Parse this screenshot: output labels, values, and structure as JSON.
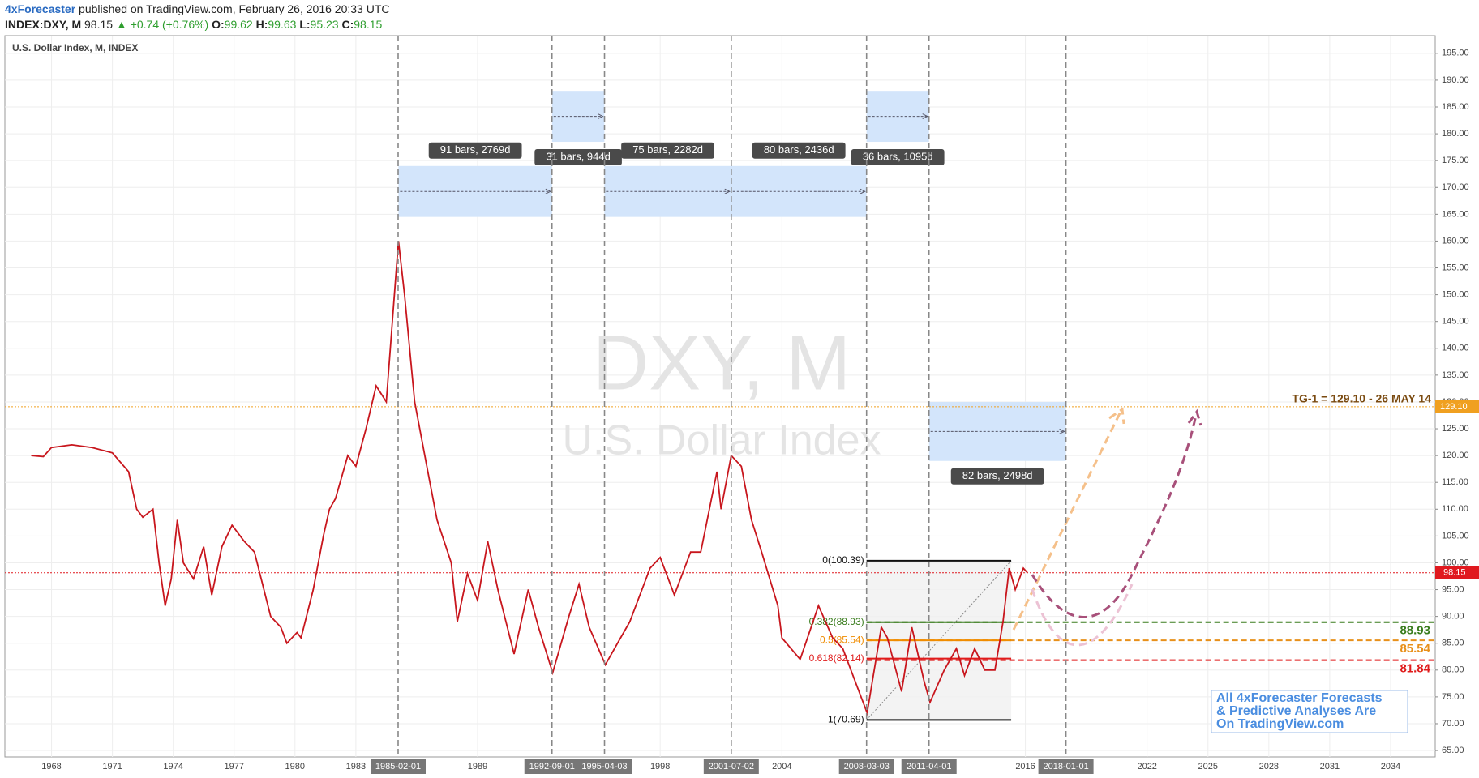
{
  "header": {
    "author": "4xForecaster",
    "published": " published on TradingView.com, February 26, 2016 20:33 UTC",
    "symbol": "INDEX:DXY, M",
    "last": "98.15",
    "change": "▲ +0.74 (+0.76%)",
    "open_label": "O:",
    "open": "99.62",
    "high_label": "H:",
    "high": "99.63",
    "low_label": "L:",
    "low": "95.23",
    "close_label": "C:",
    "close": "98.15"
  },
  "chart_data": {
    "type": "line",
    "title": "U.S. Dollar Index, M, INDEX",
    "watermark": "DXY, M",
    "watermark_subtitle": "U.S. Dollar Index",
    "x": [
      1967.0,
      1967.6,
      1968.0,
      1969.0,
      1970.0,
      1971.0,
      1971.8,
      1972.2,
      1972.5,
      1973.0,
      1973.3,
      1973.6,
      1973.9,
      1974.2,
      1974.5,
      1975.0,
      1975.5,
      1975.9,
      1976.4,
      1976.9,
      1977.5,
      1978.0,
      1978.4,
      1978.8,
      1979.3,
      1979.6,
      1980.1,
      1980.3,
      1980.9,
      1981.4,
      1981.7,
      1982.0,
      1982.6,
      1983.0,
      1983.5,
      1984.0,
      1984.5,
      1985.1,
      1985.4,
      1985.9,
      1986.5,
      1987.0,
      1987.7,
      1988.0,
      1988.5,
      1989.0,
      1989.5,
      1990.0,
      1990.8,
      1991.5,
      1992.0,
      1992.7,
      1993.5,
      1994.0,
      1994.5,
      1995.3,
      1995.9,
      1996.5,
      1997.5,
      1998.0,
      1998.7,
      1999.5,
      2000.0,
      2000.8,
      2001.0,
      2001.5,
      2002.0,
      2002.5,
      2003.0,
      2003.8,
      2004.0,
      2004.9,
      2005.8,
      2006.5,
      2007.0,
      2007.8,
      2008.2,
      2008.9,
      2009.2,
      2009.9,
      2010.4,
      2011.0,
      2011.3,
      2012.0,
      2012.6,
      2013.0,
      2013.5,
      2014.0,
      2014.5,
      2014.9,
      2015.2,
      2015.5,
      2015.9,
      2016.1
    ],
    "values": [
      120,
      119.8,
      121.5,
      122,
      121.5,
      120.5,
      117,
      110,
      108.5,
      110,
      100,
      92,
      97,
      108,
      100,
      97,
      103,
      94,
      103,
      107,
      104,
      102,
      96,
      90,
      88,
      85,
      87,
      86,
      95,
      105,
      110,
      112,
      120,
      118,
      125,
      133,
      130,
      160,
      150,
      130,
      118,
      108,
      100,
      89,
      98,
      93,
      104,
      95,
      83,
      95,
      88,
      79.5,
      90,
      96,
      88,
      81,
      85,
      89,
      99,
      101,
      94,
      102,
      102,
      117,
      110,
      120,
      118,
      108,
      102,
      92,
      86,
      82,
      92,
      86,
      84,
      76,
      72,
      88,
      86,
      76,
      88,
      78,
      74,
      80,
      84,
      79,
      84,
      80,
      80,
      89,
      99,
      95,
      99,
      98.15
    ],
    "color": "#c8161d",
    "xlim": [
      1965.7,
      2036.2
    ],
    "ylim": [
      63.8,
      198.3
    ],
    "xticks": [
      1968,
      1971,
      1974,
      1977,
      1980,
      1983,
      1989,
      1998,
      2004,
      2016,
      2022,
      2025,
      2028,
      2031,
      2034
    ],
    "yticks": [
      {
        "value": 65,
        "label": "65.00"
      },
      {
        "value": 70,
        "label": "70.00"
      },
      {
        "value": 75,
        "label": "75.00"
      },
      {
        "value": 80,
        "label": "80.00"
      },
      {
        "value": 85,
        "label": "85.00"
      },
      {
        "value": 90,
        "label": "90.00"
      },
      {
        "value": 95,
        "label": "95.00"
      },
      {
        "value": 100,
        "label": "100.00"
      },
      {
        "value": 105,
        "label": "105.00"
      },
      {
        "value": 110,
        "label": "110.00"
      },
      {
        "value": 115,
        "label": "115.00"
      },
      {
        "value": 120,
        "label": "120.00"
      },
      {
        "value": 125,
        "label": "125.00"
      },
      {
        "value": 130,
        "label": "130.00"
      },
      {
        "value": 135,
        "label": "135.00"
      },
      {
        "value": 140,
        "label": "140.00"
      },
      {
        "value": 145,
        "label": "145.00"
      },
      {
        "value": 150,
        "label": "150.00"
      },
      {
        "value": 155,
        "label": "155.00"
      },
      {
        "value": 160,
        "label": "160.00"
      },
      {
        "value": 165,
        "label": "165.00"
      },
      {
        "value": 170,
        "label": "170.00"
      },
      {
        "value": 175,
        "label": "175.00"
      },
      {
        "value": 180,
        "label": "180.00"
      },
      {
        "value": 185,
        "label": "185.00"
      },
      {
        "value": 190,
        "label": "190.00"
      },
      {
        "value": 195,
        "label": "195.00"
      }
    ],
    "grid": true,
    "markers": [
      "1985-02-01",
      "1992-09-01",
      "1995-04-03",
      "2001-07-02",
      "2008-03-03",
      "2011-04-01",
      "2018-01-01"
    ],
    "ranges": [
      {
        "label": "91 bars, 2769d",
        "x": [
          1985.1,
          1992.67
        ],
        "y": [
          164.5,
          174
        ]
      },
      {
        "label": "31 bars, 944d",
        "x": [
          1992.67,
          1995.25
        ],
        "y": [
          178.5,
          188
        ]
      },
      {
        "label": "75 bars, 2282d",
        "x": [
          1995.25,
          2001.5
        ],
        "y": [
          164.5,
          174
        ]
      },
      {
        "label": "80 bars, 2436d",
        "x": [
          2001.5,
          2008.17
        ],
        "y": [
          164.5,
          174
        ]
      },
      {
        "label": "36 bars, 1095d",
        "x": [
          2008.17,
          2011.25
        ],
        "y": [
          178.5,
          188
        ]
      },
      {
        "label": "82 bars, 2498d",
        "x": [
          2011.25,
          2018.0
        ],
        "y": [
          119,
          130
        ]
      }
    ],
    "fib": {
      "x": [
        2008.17,
        2015.3
      ],
      "levels": [
        {
          "label": "0(100.39)",
          "value": 100.39,
          "color": "#111111"
        },
        {
          "label": "0.382(88.93)",
          "value": 88.93,
          "color": "#3a7d1e"
        },
        {
          "label": "0.5(85.54)",
          "value": 85.54,
          "color": "#f08c00"
        },
        {
          "label": "0.618(82.14)",
          "value": 82.14,
          "color": "#e01b1b"
        },
        {
          "label": "1(70.69)",
          "value": 70.69,
          "color": "#111111"
        }
      ]
    },
    "targets": [
      {
        "value": 88.93,
        "color": "#3a7d1e"
      },
      {
        "value": 85.54,
        "color": "#e8901a"
      },
      {
        "value": 81.84,
        "color": "#e01b1b"
      }
    ],
    "target_line": {
      "text": "TG-1 = 129.10 - 26 MAY 14",
      "value": 129.1,
      "label": "129.10",
      "color": "#f0a020"
    },
    "last_price": {
      "value": 98.15,
      "color": "#e0191f"
    },
    "note": [
      "All 4xForecaster Forecasts",
      "& Predictive Analyses Are",
      "On TradingView.com"
    ]
  }
}
